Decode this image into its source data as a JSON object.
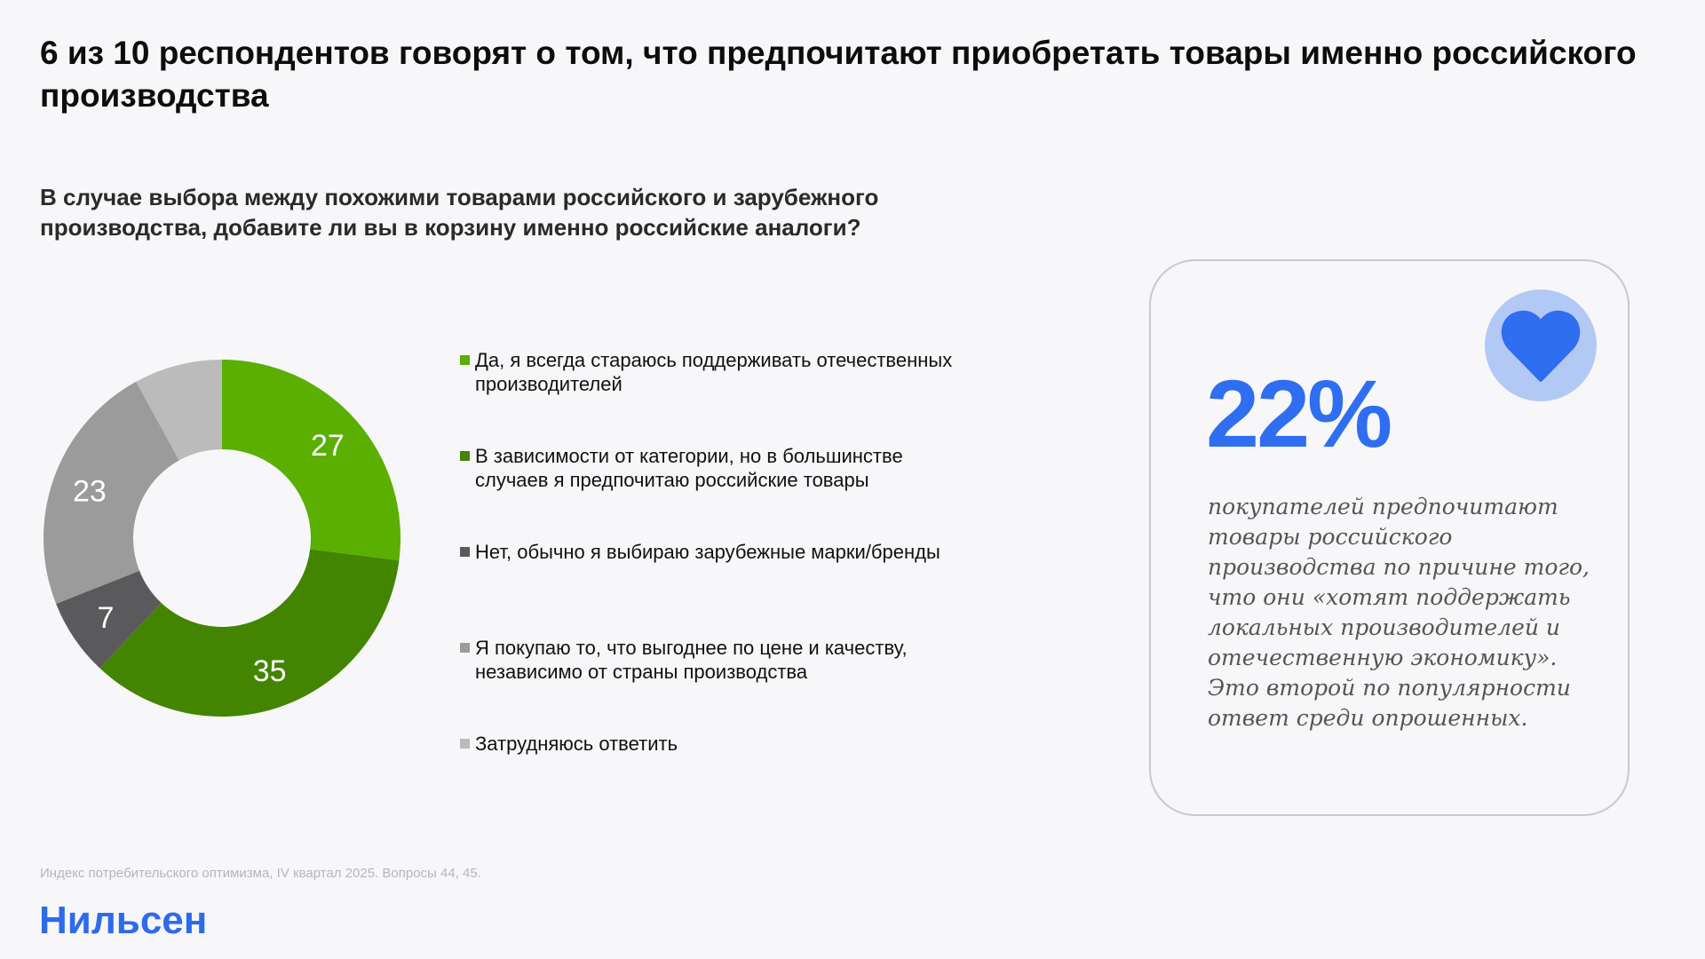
{
  "header": {
    "title": "6 из 10 респондентов говорят о том, что предпочитают приобретать товары именно российского производства",
    "question": "В случае выбора между похожими товарами российского и зарубежного производства, добавите ли вы в корзину именно российские аналоги?"
  },
  "legend": {
    "items": [
      {
        "label": "Да, я всегда стараюсь поддерживать отечественных производителей",
        "color": "#5aaf00"
      },
      {
        "label": "В зависимости от категории, но в большинстве случаев я предпочитаю российские товары",
        "color": "#438500"
      },
      {
        "label": "Нет, обычно я выбираю зарубежные марки/бренды",
        "color": "#5a5a5c"
      },
      {
        "label": "Я покупаю то, что выгоднее по цене и качеству, независимо от страны производства",
        "color": "#9b9b9c"
      },
      {
        "label": "Затрудняюсь ответить",
        "color": "#bbbbbc"
      }
    ]
  },
  "chart_data": {
    "type": "pie",
    "subtype": "donut",
    "title": "В случае выбора между похожими товарами российского и зарубежного производства, добавите ли вы в корзину именно российские аналоги?",
    "categories": [
      "Да, я всегда стараюсь поддерживать отечественных производителей",
      "В зависимости от категории, но в большинстве случаев я предпочитаю российские товары",
      "Нет, обычно я выбираю зарубежные марки/бренды",
      "Я покупаю то, что выгоднее по цене и качеству, независимо от страны производства",
      "Затрудняюсь ответить"
    ],
    "values": [
      27,
      35,
      7,
      23,
      8
    ],
    "data_labels": [
      "27",
      "35",
      "7",
      "23",
      ""
    ],
    "colors": [
      "#5aaf00",
      "#438500",
      "#5a5a5c",
      "#9b9b9c",
      "#bbbbbc"
    ],
    "start_angle_deg": 0,
    "direction": "clockwise",
    "legend_position": "right"
  },
  "card": {
    "stat": "22%",
    "icon": "heart-icon",
    "text": "покупателей предпочитают товары российского производства по причине того, что они «хотят поддержать локальных производителей и отечественную экономику». Это второй по популярности ответ среди опрошенных.",
    "accent": "#2f6ef0",
    "badge_color": "#b3c9f5"
  },
  "footer": {
    "source": "Индекс потребительского оптимизма, IV квартал 2025. Вопросы 44, 45.",
    "logo": "Нильсен"
  }
}
